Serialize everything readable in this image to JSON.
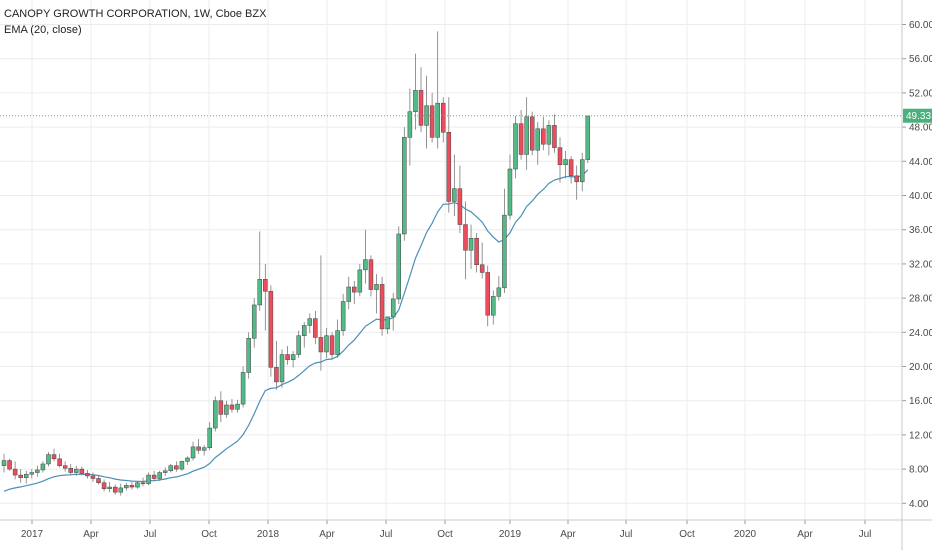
{
  "header": {
    "title": "CANOPY GROWTH CORPORATION, 1W, Cboe BZX",
    "indicator": "EMA (20, close)"
  },
  "colors": {
    "up": "#53b987",
    "down": "#eb4d5c",
    "ema": "#4a8fb8",
    "price_line": "#4caf7d",
    "grid": "#ececec"
  },
  "chart_data": {
    "type": "candlestick",
    "title": "CANOPY GROWTH CORPORATION, 1W, Cboe BZX",
    "interval": "1W",
    "exchange": "Cboe BZX",
    "y_ticks": [
      "4.00",
      "8.00",
      "12.00",
      "16.00",
      "20.00",
      "24.00",
      "28.00",
      "32.00",
      "36.00",
      "40.00",
      "44.00",
      "48.00",
      "52.00",
      "56.00",
      "60.00"
    ],
    "ylim": [
      1.6,
      61.6
    ],
    "x_ticks": [
      "2017",
      "Apr",
      "Jul",
      "Oct",
      "2018",
      "Apr",
      "Jul",
      "Oct",
      "2019",
      "Apr",
      "Jul",
      "Oct",
      "2020",
      "Apr",
      "Jul"
    ],
    "last_price": "49.33",
    "grid": true,
    "candles": [
      {
        "o": 8.4,
        "h": 9.8,
        "l": 7.6,
        "c": 9.0
      },
      {
        "o": 9.0,
        "h": 9.2,
        "l": 7.8,
        "c": 8.0
      },
      {
        "o": 8.0,
        "h": 8.9,
        "l": 6.8,
        "c": 7.3
      },
      {
        "o": 7.3,
        "h": 8.0,
        "l": 6.4,
        "c": 7.0
      },
      {
        "o": 7.0,
        "h": 7.8,
        "l": 6.3,
        "c": 7.4
      },
      {
        "o": 7.4,
        "h": 8.0,
        "l": 6.9,
        "c": 7.6
      },
      {
        "o": 7.6,
        "h": 8.4,
        "l": 7.1,
        "c": 7.9
      },
      {
        "o": 7.9,
        "h": 8.9,
        "l": 7.6,
        "c": 8.6
      },
      {
        "o": 8.6,
        "h": 10.0,
        "l": 8.3,
        "c": 9.7
      },
      {
        "o": 9.7,
        "h": 10.4,
        "l": 8.9,
        "c": 9.2
      },
      {
        "o": 9.2,
        "h": 9.8,
        "l": 8.2,
        "c": 8.4
      },
      {
        "o": 8.4,
        "h": 8.9,
        "l": 7.7,
        "c": 8.1
      },
      {
        "o": 8.1,
        "h": 8.6,
        "l": 7.3,
        "c": 7.6
      },
      {
        "o": 7.6,
        "h": 8.4,
        "l": 7.2,
        "c": 8.0
      },
      {
        "o": 8.0,
        "h": 8.3,
        "l": 7.3,
        "c": 7.5
      },
      {
        "o": 7.5,
        "h": 7.9,
        "l": 6.9,
        "c": 7.2
      },
      {
        "o": 7.2,
        "h": 7.6,
        "l": 6.5,
        "c": 6.9
      },
      {
        "o": 6.9,
        "h": 7.3,
        "l": 6.2,
        "c": 6.4
      },
      {
        "o": 6.4,
        "h": 6.8,
        "l": 5.4,
        "c": 5.7
      },
      {
        "o": 5.7,
        "h": 6.5,
        "l": 5.3,
        "c": 5.9
      },
      {
        "o": 5.9,
        "h": 6.2,
        "l": 5.0,
        "c": 5.3
      },
      {
        "o": 5.3,
        "h": 6.3,
        "l": 4.9,
        "c": 5.8
      },
      {
        "o": 5.8,
        "h": 6.4,
        "l": 5.5,
        "c": 6.1
      },
      {
        "o": 6.1,
        "h": 6.5,
        "l": 5.6,
        "c": 5.9
      },
      {
        "o": 5.9,
        "h": 6.6,
        "l": 5.7,
        "c": 6.4
      },
      {
        "o": 6.4,
        "h": 7.0,
        "l": 6.0,
        "c": 6.3
      },
      {
        "o": 6.3,
        "h": 7.6,
        "l": 6.1,
        "c": 7.3
      },
      {
        "o": 7.3,
        "h": 7.8,
        "l": 6.6,
        "c": 6.9
      },
      {
        "o": 6.9,
        "h": 7.8,
        "l": 6.6,
        "c": 7.6
      },
      {
        "o": 7.6,
        "h": 8.2,
        "l": 7.2,
        "c": 7.8
      },
      {
        "o": 7.8,
        "h": 8.6,
        "l": 7.6,
        "c": 8.4
      },
      {
        "o": 8.4,
        "h": 8.9,
        "l": 7.7,
        "c": 8.0
      },
      {
        "o": 8.0,
        "h": 9.0,
        "l": 7.8,
        "c": 8.9
      },
      {
        "o": 8.9,
        "h": 9.5,
        "l": 8.5,
        "c": 9.3
      },
      {
        "o": 9.3,
        "h": 11.2,
        "l": 9.0,
        "c": 10.6
      },
      {
        "o": 10.6,
        "h": 11.5,
        "l": 9.8,
        "c": 10.2
      },
      {
        "o": 10.2,
        "h": 10.8,
        "l": 9.6,
        "c": 10.5
      },
      {
        "o": 10.5,
        "h": 13.5,
        "l": 10.2,
        "c": 12.8
      },
      {
        "o": 12.8,
        "h": 16.5,
        "l": 12.4,
        "c": 16.0
      },
      {
        "o": 16.0,
        "h": 17.1,
        "l": 13.5,
        "c": 14.4
      },
      {
        "o": 14.4,
        "h": 16.0,
        "l": 14.0,
        "c": 15.5
      },
      {
        "o": 15.5,
        "h": 16.2,
        "l": 14.6,
        "c": 15.0
      },
      {
        "o": 15.0,
        "h": 16.1,
        "l": 14.6,
        "c": 15.6
      },
      {
        "o": 15.6,
        "h": 20.0,
        "l": 15.2,
        "c": 19.3
      },
      {
        "o": 19.3,
        "h": 24.0,
        "l": 18.6,
        "c": 23.3
      },
      {
        "o": 23.3,
        "h": 28.0,
        "l": 22.2,
        "c": 27.2
      },
      {
        "o": 27.2,
        "h": 35.8,
        "l": 26.5,
        "c": 30.2
      },
      {
        "o": 30.2,
        "h": 32.0,
        "l": 24.2,
        "c": 28.8
      },
      {
        "o": 28.8,
        "h": 29.5,
        "l": 18.8,
        "c": 19.9
      },
      {
        "o": 19.9,
        "h": 23.0,
        "l": 17.3,
        "c": 18.2
      },
      {
        "o": 18.2,
        "h": 22.0,
        "l": 17.5,
        "c": 21.4
      },
      {
        "o": 21.4,
        "h": 22.4,
        "l": 20.2,
        "c": 20.8
      },
      {
        "o": 20.8,
        "h": 21.8,
        "l": 19.9,
        "c": 21.4
      },
      {
        "o": 21.4,
        "h": 24.2,
        "l": 21.0,
        "c": 23.6
      },
      {
        "o": 23.6,
        "h": 25.2,
        "l": 22.2,
        "c": 24.8
      },
      {
        "o": 24.8,
        "h": 26.2,
        "l": 23.9,
        "c": 25.6
      },
      {
        "o": 25.6,
        "h": 26.5,
        "l": 22.6,
        "c": 23.4
      },
      {
        "o": 23.4,
        "h": 33.0,
        "l": 19.5,
        "c": 21.7
      },
      {
        "o": 21.7,
        "h": 24.5,
        "l": 21.0,
        "c": 23.6
      },
      {
        "o": 23.6,
        "h": 24.0,
        "l": 20.8,
        "c": 21.4
      },
      {
        "o": 21.4,
        "h": 25.5,
        "l": 21.0,
        "c": 24.2
      },
      {
        "o": 24.2,
        "h": 28.5,
        "l": 23.6,
        "c": 27.6
      },
      {
        "o": 27.6,
        "h": 30.5,
        "l": 26.7,
        "c": 29.3
      },
      {
        "o": 29.3,
        "h": 30.0,
        "l": 27.3,
        "c": 28.7
      },
      {
        "o": 28.7,
        "h": 32.0,
        "l": 28.2,
        "c": 31.3
      },
      {
        "o": 31.3,
        "h": 36.0,
        "l": 29.7,
        "c": 32.5
      },
      {
        "o": 32.5,
        "h": 33.0,
        "l": 28.2,
        "c": 29.0
      },
      {
        "o": 29.0,
        "h": 30.8,
        "l": 26.2,
        "c": 29.6
      },
      {
        "o": 29.6,
        "h": 30.5,
        "l": 23.6,
        "c": 24.4
      },
      {
        "o": 24.4,
        "h": 25.6,
        "l": 23.8,
        "c": 25.8
      },
      {
        "o": 25.8,
        "h": 28.6,
        "l": 24.2,
        "c": 27.9
      },
      {
        "o": 27.9,
        "h": 36.4,
        "l": 27.3,
        "c": 35.5
      },
      {
        "o": 35.5,
        "h": 48.0,
        "l": 34.7,
        "c": 46.8
      },
      {
        "o": 46.8,
        "h": 52.5,
        "l": 43.5,
        "c": 49.8
      },
      {
        "o": 49.8,
        "h": 56.6,
        "l": 47.7,
        "c": 52.3
      },
      {
        "o": 52.3,
        "h": 55.0,
        "l": 47.4,
        "c": 48.2
      },
      {
        "o": 48.2,
        "h": 54.0,
        "l": 45.5,
        "c": 50.5
      },
      {
        "o": 50.5,
        "h": 52.0,
        "l": 46.2,
        "c": 46.8
      },
      {
        "o": 46.8,
        "h": 59.2,
        "l": 45.5,
        "c": 50.8
      },
      {
        "o": 50.8,
        "h": 51.5,
        "l": 46.2,
        "c": 47.4
      },
      {
        "o": 47.4,
        "h": 51.5,
        "l": 38.0,
        "c": 39.3
      },
      {
        "o": 39.3,
        "h": 44.8,
        "l": 37.6,
        "c": 40.8
      },
      {
        "o": 40.8,
        "h": 43.5,
        "l": 35.6,
        "c": 36.6
      },
      {
        "o": 36.6,
        "h": 39.3,
        "l": 30.2,
        "c": 33.6
      },
      {
        "o": 33.6,
        "h": 36.6,
        "l": 31.4,
        "c": 35.0
      },
      {
        "o": 35.0,
        "h": 35.6,
        "l": 31.0,
        "c": 31.9
      },
      {
        "o": 31.9,
        "h": 34.5,
        "l": 30.3,
        "c": 31.0
      },
      {
        "o": 31.0,
        "h": 31.8,
        "l": 24.7,
        "c": 26.0
      },
      {
        "o": 26.0,
        "h": 28.9,
        "l": 24.9,
        "c": 28.2
      },
      {
        "o": 28.2,
        "h": 30.6,
        "l": 27.7,
        "c": 29.2
      },
      {
        "o": 29.2,
        "h": 40.8,
        "l": 28.6,
        "c": 37.7
      },
      {
        "o": 37.7,
        "h": 44.8,
        "l": 37.2,
        "c": 43.1
      },
      {
        "o": 43.1,
        "h": 49.3,
        "l": 42.0,
        "c": 48.4
      },
      {
        "o": 48.4,
        "h": 50.0,
        "l": 44.2,
        "c": 44.8
      },
      {
        "o": 44.8,
        "h": 51.5,
        "l": 43.0,
        "c": 49.2
      },
      {
        "o": 49.2,
        "h": 49.8,
        "l": 44.7,
        "c": 45.3
      },
      {
        "o": 45.3,
        "h": 48.6,
        "l": 43.6,
        "c": 47.8
      },
      {
        "o": 47.8,
        "h": 49.2,
        "l": 45.3,
        "c": 46.0
      },
      {
        "o": 46.0,
        "h": 48.8,
        "l": 44.7,
        "c": 48.2
      },
      {
        "o": 48.2,
        "h": 49.5,
        "l": 45.0,
        "c": 45.6
      },
      {
        "o": 45.6,
        "h": 46.8,
        "l": 41.5,
        "c": 43.6
      },
      {
        "o": 43.6,
        "h": 45.2,
        "l": 42.0,
        "c": 44.2
      },
      {
        "o": 44.2,
        "h": 44.6,
        "l": 41.4,
        "c": 42.3
      },
      {
        "o": 42.3,
        "h": 43.5,
        "l": 39.5,
        "c": 41.6
      },
      {
        "o": 41.6,
        "h": 45.0,
        "l": 40.5,
        "c": 44.2
      },
      {
        "o": 44.2,
        "h": 49.3,
        "l": 43.8,
        "c": 49.3
      }
    ]
  }
}
